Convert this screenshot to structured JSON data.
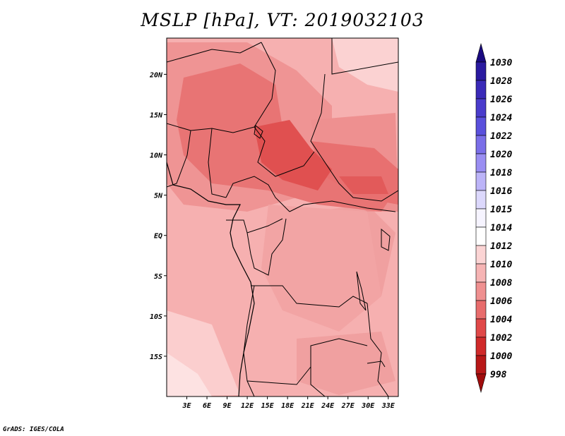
{
  "title": "MSLP [hPa], VT: 2019032103",
  "footer": "GrADS: IGES/COLA",
  "map": {
    "lon_range": [
      0,
      34.5
    ],
    "lat_range": [
      -20,
      24.5
    ],
    "lon_ticks": [
      "3E",
      "6E",
      "9E",
      "12E",
      "15E",
      "18E",
      "21E",
      "24E",
      "27E",
      "30E",
      "33E"
    ],
    "lon_tick_values": [
      3,
      6,
      9,
      12,
      15,
      18,
      21,
      24,
      27,
      30,
      33
    ],
    "lat_ticks": [
      "20N",
      "15N",
      "10N",
      "5N",
      "EQ",
      "5S",
      "10S",
      "15S"
    ],
    "lat_tick_values": [
      20,
      15,
      10,
      5,
      0,
      -5,
      -10,
      -15
    ]
  },
  "colorbar": {
    "labels": [
      "1030",
      "1028",
      "1026",
      "1024",
      "1022",
      "1020",
      "1018",
      "1016",
      "1015",
      "1014",
      "1012",
      "1010",
      "1008",
      "1006",
      "1004",
      "1002",
      "1000",
      "998"
    ],
    "colors": [
      "#1a0a80",
      "#2a1aa0",
      "#3a2ab8",
      "#4a3ccc",
      "#5a50dc",
      "#7a6ee8",
      "#9a8ef2",
      "#bcb4f8",
      "#dcd8fc",
      "#f6f4ff",
      "#ffffff",
      "#fbd4d4",
      "#f6b4b4",
      "#ef9090",
      "#e86c6c",
      "#e04848",
      "#d02a2a",
      "#b81818",
      "#a00c0c"
    ]
  }
}
